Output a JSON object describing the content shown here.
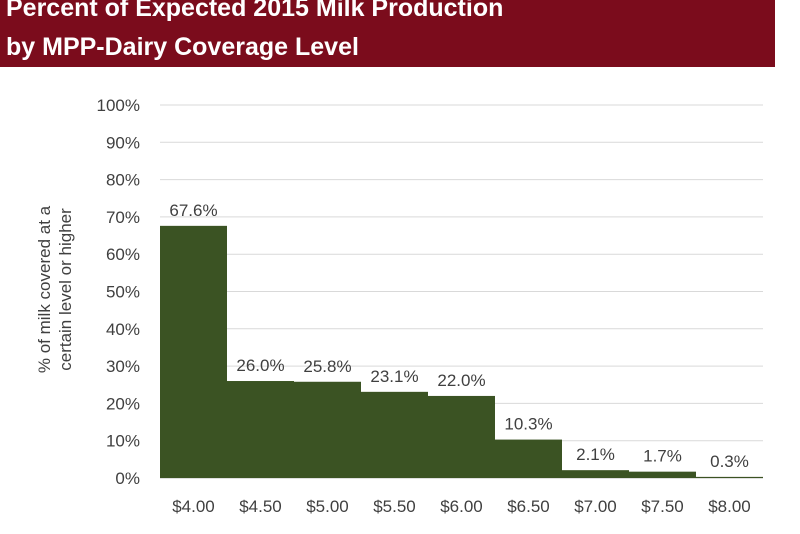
{
  "chart_data": {
    "type": "bar",
    "title": "Percent of Expected 2015 Milk Production",
    "subtitle": "by MPP-Dairy Coverage Level",
    "ylabel_lines": [
      "% of milk covered at a",
      "certain level or higher"
    ],
    "xlabel": "",
    "categories": [
      "$4.00",
      "$4.50",
      "$5.00",
      "$5.50",
      "$6.00",
      "$6.50",
      "$7.00",
      "$7.50",
      "$8.00"
    ],
    "values": [
      67.6,
      26.0,
      25.8,
      23.1,
      22.0,
      10.3,
      2.1,
      1.7,
      0.3
    ],
    "data_labels": [
      "67.6%",
      "26.0%",
      "25.8%",
      "23.1%",
      "22.0%",
      "10.3%",
      "2.1%",
      "1.7%",
      "0.3%"
    ],
    "ylim": [
      0,
      100
    ],
    "yticks": [
      "0%",
      "10%",
      "20%",
      "30%",
      "40%",
      "50%",
      "60%",
      "70%",
      "80%",
      "90%",
      "100%"
    ],
    "grid": true,
    "legend": "none",
    "colors": {
      "bar": "#3b5323",
      "banner": "#7b0c1c",
      "grid": "#d9d9d9"
    }
  }
}
